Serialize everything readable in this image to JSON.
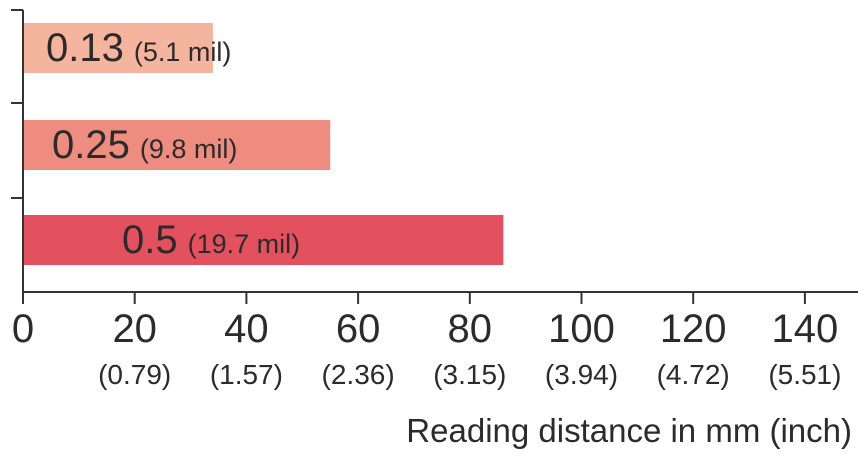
{
  "chart_data": {
    "type": "bar",
    "orientation": "horizontal",
    "categories": [
      "0.13",
      "0.25",
      "0.5"
    ],
    "values": [
      34,
      55,
      86
    ],
    "bar_labels": [
      {
        "main": "0.13",
        "sub": "(5.1 mil)"
      },
      {
        "main": "0.25",
        "sub": "(9.8 mil)"
      },
      {
        "main": "0.5",
        "sub": "(19.7 mil)"
      }
    ],
    "colors": [
      "#f5b49e",
      "#ef8c80",
      "#e3515f"
    ],
    "xlim": [
      0,
      150
    ],
    "xticks": [
      0,
      20,
      40,
      60,
      80,
      100,
      120,
      140
    ],
    "xtick_labels": [
      "0",
      "20",
      "40",
      "60",
      "80",
      "100",
      "120",
      "140"
    ],
    "xtick_sublabels": [
      "",
      "(0.79)",
      "(1.57)",
      "(2.36)",
      "(3.15)",
      "(3.94)",
      "(4.72)",
      "(5.51)"
    ],
    "xlabel": "Reading distance in mm (inch)",
    "ylabel": "",
    "title": "",
    "grid": false,
    "axis_color": "#333333"
  }
}
